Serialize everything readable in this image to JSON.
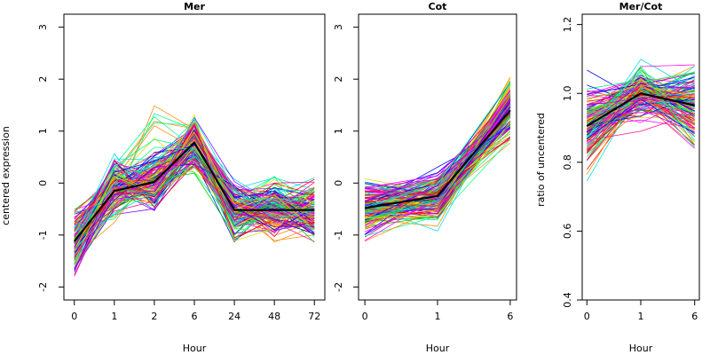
{
  "chart_data": [
    {
      "id": "mer",
      "type": "line",
      "title": "Mer",
      "xlabel": "Hour",
      "ylabel": "centered expression",
      "categories": [
        "0",
        "1",
        "2",
        "6",
        "24",
        "48",
        "72"
      ],
      "ylim": [
        -2.25,
        3.25
      ],
      "yticks": [
        -2,
        -1,
        0,
        1,
        2,
        3
      ],
      "mean": [
        -1.12,
        -0.15,
        0.02,
        0.78,
        -0.52,
        -0.52,
        -0.52
      ],
      "series_count": 150,
      "series_palette": [
        "#ff0000",
        "#00cc00",
        "#0000ff",
        "#00dddd",
        "#ff00ff",
        "#dddd00",
        "#ff8800",
        "#8800ff",
        "#ff0088",
        "#00ff88"
      ]
    },
    {
      "id": "cot",
      "type": "line",
      "title": "Cot",
      "xlabel": "Hour",
      "ylabel": "",
      "categories": [
        "0",
        "1",
        "6"
      ],
      "ylim": [
        -2.25,
        3.25
      ],
      "yticks": [
        -2,
        -1,
        0,
        1,
        2,
        3
      ],
      "mean": [
        -0.48,
        -0.25,
        1.4
      ],
      "series_count": 150,
      "series_palette": [
        "#ff0000",
        "#00cc00",
        "#0000ff",
        "#00dddd",
        "#ff00ff",
        "#dddd00",
        "#ff8800",
        "#8800ff",
        "#ff0088",
        "#00ff88"
      ]
    },
    {
      "id": "ratio",
      "type": "line",
      "title": "Mer/Cot",
      "xlabel": "Hour",
      "ylabel": "ratio of uncentered",
      "categories": [
        "0",
        "1",
        "6"
      ],
      "ylim": [
        0.4,
        1.23
      ],
      "yticks": [
        0.4,
        0.6,
        0.8,
        1.0,
        1.2
      ],
      "ytick_labels": [
        "0.4",
        "0.6",
        "0.8",
        "1.0",
        "1.2"
      ],
      "mean": [
        0.905,
        1.0,
        0.965
      ],
      "series_count": 150,
      "series_palette": [
        "#ff0000",
        "#00cc00",
        "#0000ff",
        "#00dddd",
        "#ff00ff",
        "#dddd00",
        "#ff8800",
        "#8800ff",
        "#ff0088",
        "#00ff88"
      ]
    }
  ]
}
